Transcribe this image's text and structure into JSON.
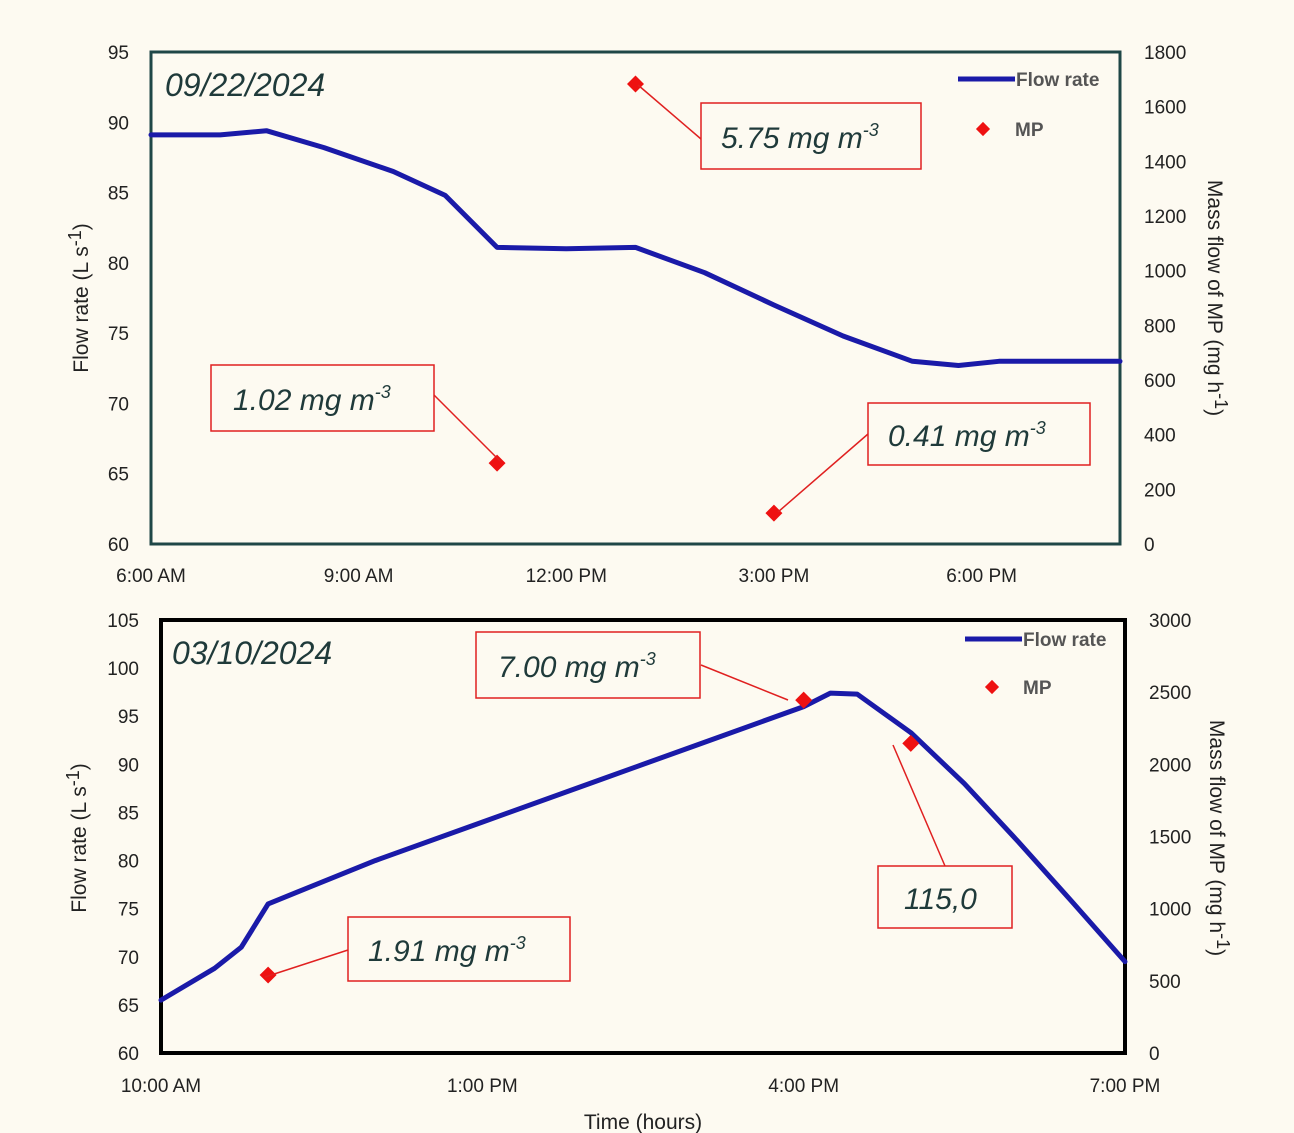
{
  "colors": {
    "background": "#fdfaf1",
    "flow_line": "#1a1aa8",
    "mp_marker": "#ee1111",
    "annotation_border": "#e02020",
    "panel1_border": "#1f4747",
    "panel2_border": "#000000"
  },
  "chart_data": [
    {
      "type": "line",
      "date_label": "09/22/2024",
      "x_unit": "time of day",
      "xticks": [
        "6:00 AM",
        "9:00 AM",
        "12:00 PM",
        "3:00 PM",
        "6:00 PM"
      ],
      "xlim": [
        "6:00 AM",
        "8:00 PM"
      ],
      "ylabel": "Flow rate (L s-1)",
      "ylim": [
        60,
        95
      ],
      "yticks": [
        60,
        65,
        70,
        75,
        80,
        85,
        90,
        95
      ],
      "y2label": "Mass flow of MP (mg h-1)",
      "y2lim": [
        0,
        1800
      ],
      "y2ticks": [
        0,
        200,
        400,
        600,
        800,
        1000,
        1200,
        1400,
        1600,
        1800
      ],
      "legend_position": "top-right",
      "series": [
        {
          "name": "Flow rate",
          "axis": "left",
          "x": [
            "6:00 AM",
            "7:00 AM",
            "7:40 AM",
            "8:30 AM",
            "9:30 AM",
            "10:15 AM",
            "11:00 AM",
            "12:00 PM",
            "1:00 PM",
            "2:00 PM",
            "3:00 PM",
            "4:00 PM",
            "5:00 PM",
            "5:40 PM",
            "6:15 PM",
            "7:00 PM",
            "8:00 PM"
          ],
          "y": [
            89.1,
            89.1,
            89.4,
            88.2,
            86.5,
            84.8,
            81.1,
            81.0,
            81.1,
            79.3,
            77.0,
            74.8,
            73.0,
            72.7,
            73.0,
            73.0,
            73.0
          ]
        },
        {
          "name": "MP",
          "axis": "right",
          "x": [
            "11:00 AM",
            "1:00 PM",
            "3:00 PM"
          ],
          "y": [
            296,
            1683,
            113
          ],
          "labels": [
            "1.02 mg m-3",
            "5.75 mg m-3",
            "0.41 mg m-3"
          ]
        }
      ]
    },
    {
      "type": "line",
      "date_label": "03/10/2024",
      "x_unit": "time of day",
      "xticks": [
        "10:00 AM",
        "1:00 PM",
        "4:00 PM",
        "7:00 PM"
      ],
      "xlim": [
        "10:00 AM",
        "7:00 PM"
      ],
      "xlabel": "Time (hours)",
      "ylabel": "Flow rate (L s-1)",
      "ylim": [
        60,
        105
      ],
      "yticks": [
        60,
        65,
        70,
        75,
        80,
        85,
        90,
        95,
        100,
        105
      ],
      "y2label": "Mass flow of MP (mg h-1)",
      "y2lim": [
        0,
        3000
      ],
      "y2ticks": [
        0,
        500,
        1000,
        1500,
        2000,
        2500,
        3000
      ],
      "legend_position": "top-right",
      "series": [
        {
          "name": "Flow rate",
          "axis": "left",
          "x": [
            "10:00 AM",
            "10:30 AM",
            "10:45 AM",
            "11:00 AM",
            "11:20 AM",
            "12:00 PM",
            "1:00 PM",
            "2:00 PM",
            "3:00 PM",
            "4:00 PM",
            "4:15 PM",
            "4:30 PM",
            "5:00 PM",
            "5:30 PM",
            "6:00 PM",
            "6:30 PM",
            "7:00 PM"
          ],
          "y": [
            65.5,
            68.8,
            71.0,
            75.5,
            77.0,
            80.0,
            84.0,
            88.0,
            92.0,
            96.0,
            97.4,
            97.3,
            93.3,
            88.0,
            82.0,
            75.8,
            69.5
          ]
        },
        {
          "name": "MP",
          "axis": "right",
          "x": [
            "11:00 AM",
            "4:00 PM",
            "5:00 PM"
          ],
          "y": [
            540,
            2445,
            2145
          ],
          "labels": [
            "1.91 mg m-3",
            "7.00 mg m-3",
            "115,0"
          ]
        }
      ]
    }
  ]
}
